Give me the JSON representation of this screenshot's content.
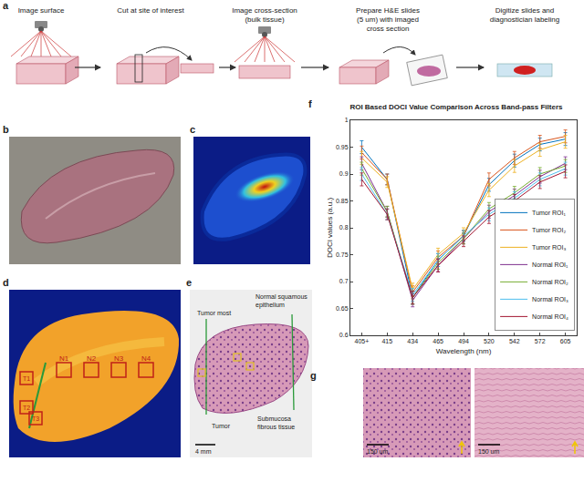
{
  "panel_labels": {
    "a": "a",
    "b": "b",
    "c": "c",
    "d": "d",
    "e": "e",
    "f": "f",
    "g": "g"
  },
  "panel_a": {
    "steps": [
      [
        "Image surface"
      ],
      [
        "Cut at site of interest"
      ],
      [
        "Image cross-section",
        "(bulk tissue)"
      ],
      [
        "Prepare H&E slides",
        "(5 um) with imaged",
        "cross section"
      ],
      [
        "Digitize slides and",
        "diagnostician labeling"
      ]
    ]
  },
  "panel_d": {
    "tumor_rois": [
      "T1",
      "T2",
      "T3"
    ],
    "normal_rois": [
      "N1",
      "N2",
      "N3",
      "N4"
    ]
  },
  "panel_e": {
    "annotations": [
      "Tumor most",
      "Normal squamous",
      "epithelium",
      "Tumor",
      "Submucosa",
      "fibrous tissue"
    ],
    "scale_bar": "4 mm"
  },
  "panel_g": {
    "scale_bars": [
      "150 um",
      "150 um"
    ]
  },
  "chart_data": {
    "type": "line",
    "title": "ROI Based DOCI Value Comparison Across Band-pass Filters",
    "x_label": "Wavelength (nm)",
    "y_label": "DOCI values (a.u.)",
    "categories": [
      "405+",
      "415",
      "434",
      "465",
      "494",
      "520",
      "542",
      "572",
      "605"
    ],
    "ylim": [
      0.6,
      1
    ],
    "yticks": [
      0.6,
      0.65,
      0.7,
      0.75,
      0.8,
      0.85,
      0.9,
      0.95,
      1
    ],
    "grid": false,
    "legend": "lower right",
    "marker": "none",
    "series": [
      {
        "name": "Tumor ROI₁",
        "color": "#0072BD",
        "values": [
          0.95,
          0.89,
          0.67,
          0.74,
          0.785,
          0.88,
          0.925,
          0.955,
          0.965
        ],
        "errors": [
          0.012,
          0.01,
          0.012,
          0.012,
          0.01,
          0.012,
          0.012,
          0.012,
          0.012
        ]
      },
      {
        "name": "Tumor ROI₂",
        "color": "#D95319",
        "values": [
          0.94,
          0.89,
          0.68,
          0.745,
          0.785,
          0.89,
          0.93,
          0.96,
          0.97
        ],
        "errors": [
          0.012,
          0.01,
          0.012,
          0.012,
          0.01,
          0.012,
          0.012,
          0.012,
          0.012
        ]
      },
      {
        "name": "Tumor ROI₃",
        "color": "#EDB120",
        "values": [
          0.93,
          0.885,
          0.685,
          0.75,
          0.79,
          0.87,
          0.915,
          0.945,
          0.96
        ],
        "errors": [
          0.012,
          0.01,
          0.012,
          0.012,
          0.01,
          0.012,
          0.012,
          0.012,
          0.012
        ]
      },
      {
        "name": "Normal ROI₁",
        "color": "#7E2F8E",
        "values": [
          0.92,
          0.83,
          0.665,
          0.73,
          0.78,
          0.83,
          0.86,
          0.895,
          0.92
        ],
        "errors": [
          0.012,
          0.01,
          0.012,
          0.012,
          0.01,
          0.012,
          0.012,
          0.012,
          0.012
        ]
      },
      {
        "name": "Normal ROI₂",
        "color": "#77AC30",
        "values": [
          0.91,
          0.83,
          0.67,
          0.735,
          0.78,
          0.835,
          0.865,
          0.9,
          0.915
        ],
        "errors": [
          0.012,
          0.01,
          0.012,
          0.012,
          0.01,
          0.012,
          0.012,
          0.012,
          0.012
        ]
      },
      {
        "name": "Normal ROI₃",
        "color": "#4DBEEE",
        "values": [
          0.9,
          0.825,
          0.675,
          0.74,
          0.785,
          0.825,
          0.855,
          0.89,
          0.91
        ],
        "errors": [
          0.012,
          0.01,
          0.012,
          0.012,
          0.01,
          0.012,
          0.012,
          0.012,
          0.012
        ]
      },
      {
        "name": "Normal ROI₄",
        "color": "#A2142F",
        "values": [
          0.89,
          0.825,
          0.67,
          0.73,
          0.775,
          0.82,
          0.85,
          0.885,
          0.905
        ],
        "errors": [
          0.012,
          0.01,
          0.012,
          0.012,
          0.01,
          0.012,
          0.012,
          0.012,
          0.012
        ]
      }
    ]
  }
}
